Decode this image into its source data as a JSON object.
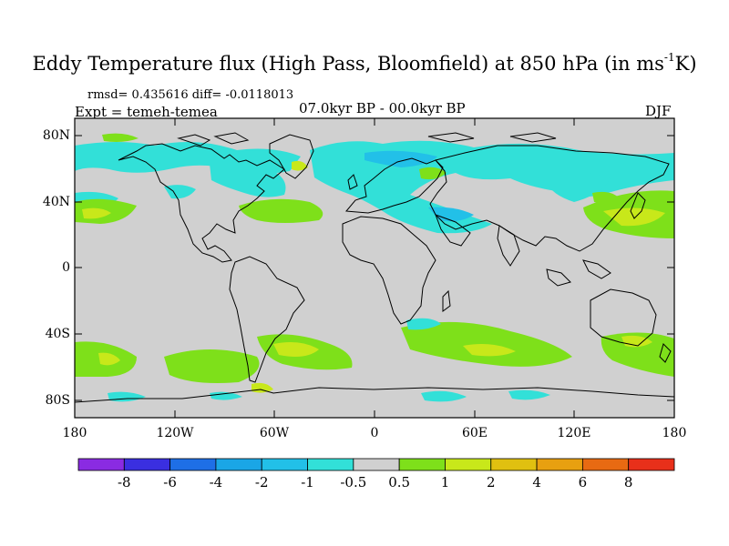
{
  "title": {
    "main": "Eddy Temperature flux (High Pass, Bloomfield) at 850 hPa (in ms",
    "sup": "-1",
    "tail": "K)"
  },
  "stats": "rmsd= 0.435616 diff= -0.0118013",
  "experiment": "Expt = temeh-temea",
  "period": "07.0kyr BP - 00.0kyr BP",
  "season": "DJF",
  "axes": {
    "y_labels": [
      "80N",
      "40N",
      "0",
      "40S",
      "80S"
    ],
    "x_labels": [
      "180",
      "120W",
      "60W",
      "0",
      "60E",
      "120E",
      "180"
    ]
  },
  "colorbar": {
    "labels": [
      "-8",
      "-6",
      "-4",
      "-2",
      "-1",
      "-0.5",
      "0.5",
      "1",
      "2",
      "4",
      "6",
      "8"
    ],
    "colors": [
      "#8a2be2",
      "#3a2fe0",
      "#1e6fe6",
      "#1aa6e6",
      "#22c0e8",
      "#32e0d8",
      "#d0d0d0",
      "#7ee01a",
      "#c8e81a",
      "#e0c010",
      "#e8a010",
      "#e86a12",
      "#e8301a"
    ]
  },
  "map": {
    "background": "#d0d0d0",
    "blue_shade": "#32e0d8",
    "light_blue_shade": "#22c0e8",
    "green_shade": "#7ee01a",
    "yellow_shade": "#c8e81a"
  }
}
